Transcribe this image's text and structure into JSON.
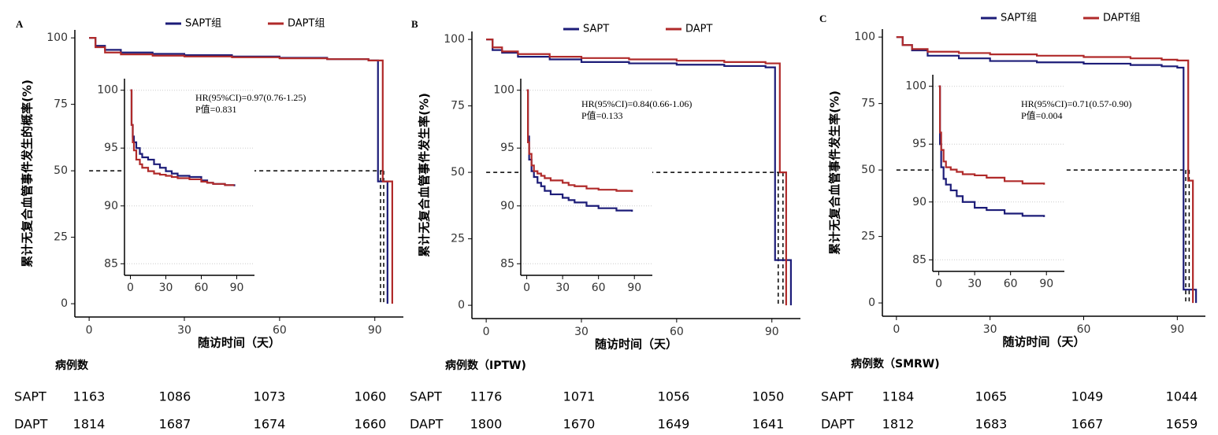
{
  "chart_data": [
    {
      "type": "line",
      "step": "post",
      "panel_label": "A",
      "xlabel": "随访时间（天）",
      "ylabel": "累计无复合血管事件发生的概率(%)",
      "xlim": [
        -4.5,
        99
      ],
      "ylim": [
        -5,
        103
      ],
      "xticks": [
        0,
        30,
        60,
        90
      ],
      "yticks": [
        0,
        25,
        50,
        75,
        100
      ],
      "series": [
        {
          "name": "SAPT组",
          "color": "#1c1c78",
          "x": [
            0,
            2,
            5,
            10,
            20,
            30,
            45,
            60,
            75,
            88,
            91,
            94
          ],
          "values": [
            100,
            97,
            95.5,
            94.5,
            94,
            93.5,
            93,
            92.5,
            92,
            91.5,
            46,
            0
          ]
        },
        {
          "name": "DAPT组",
          "color": "#b02a2a",
          "x": [
            0,
            2,
            5,
            10,
            20,
            30,
            45,
            60,
            75,
            88,
            92.5,
            95.5
          ],
          "values": [
            100,
            96.5,
            94.5,
            93.8,
            93.3,
            93,
            92.7,
            92.3,
            92,
            91.5,
            46,
            0
          ]
        }
      ],
      "median_lines": {
        "y": 50,
        "x": [
          91.8,
          92.8
        ]
      },
      "inset": {
        "xlim": [
          -5,
          105
        ],
        "ylim": [
          84,
          101
        ],
        "xticks": [
          0,
          30,
          60,
          90
        ],
        "yticks": [
          85,
          90,
          95,
          100
        ],
        "grid": true,
        "annotations": [
          "HR(95%CI)=0.97(0.76-1.25)",
          "P值=0.831"
        ],
        "series": [
          {
            "color": "#1c1c78",
            "x": [
              0,
              1,
              2,
              3,
              5,
              8,
              10,
              15,
              20,
              25,
              30,
              35,
              40,
              50,
              60,
              65,
              70,
              80,
              88
            ],
            "values": [
              100,
              97,
              96,
              95.5,
              95,
              94.5,
              94.2,
              94,
              93.6,
              93.3,
              93,
              92.8,
              92.6,
              92.5,
              92.2,
              92,
              91.9,
              91.8,
              91.7
            ]
          },
          {
            "color": "#b02a2a",
            "x": [
              0,
              1,
              2,
              3,
              5,
              8,
              10,
              15,
              20,
              25,
              30,
              35,
              40,
              50,
              60,
              65,
              70,
              80,
              88
            ],
            "values": [
              100,
              97,
              95.5,
              94.8,
              94,
              93.6,
              93.3,
              93,
              92.8,
              92.7,
              92.6,
              92.5,
              92.4,
              92.3,
              92.1,
              92,
              91.9,
              91.8,
              91.8
            ]
          }
        ]
      },
      "risk_table": {
        "title": "病例数",
        "rows": [
          {
            "name": "SAPT",
            "values": [
              1163,
              1086,
              1073,
              1060
            ]
          },
          {
            "name": "DAPT",
            "values": [
              1814,
              1687,
              1674,
              1660
            ]
          }
        ]
      }
    },
    {
      "type": "line",
      "step": "post",
      "panel_label": "B",
      "xlabel": "随访时间（天）",
      "ylabel": "累计无复合血管事件发生率(%)",
      "xlim": [
        -4.5,
        99
      ],
      "ylim": [
        -5,
        103
      ],
      "xticks": [
        0,
        30,
        60,
        90
      ],
      "yticks": [
        0,
        25,
        50,
        75,
        100
      ],
      "series": [
        {
          "name": "SAPT",
          "color": "#1c1c78",
          "x": [
            0,
            2,
            5,
            10,
            20,
            30,
            45,
            60,
            75,
            88,
            91,
            96
          ],
          "values": [
            100,
            96,
            95,
            93.5,
            92.5,
            91.5,
            91,
            90.5,
            90,
            89.5,
            17,
            0
          ]
        },
        {
          "name": "DAPT",
          "color": "#b02a2a",
          "x": [
            0,
            2,
            5,
            10,
            20,
            30,
            45,
            60,
            75,
            88,
            92.5,
            94.5
          ],
          "values": [
            100,
            97,
            95.5,
            94.5,
            93.5,
            93,
            92.5,
            92,
            91.5,
            91,
            50,
            0
          ]
        }
      ],
      "median_lines": {
        "y": 50,
        "x": [
          92,
          93.5
        ]
      },
      "inset": {
        "xlim": [
          -5,
          105
        ],
        "ylim": [
          84,
          101
        ],
        "xticks": [
          0,
          30,
          60,
          90
        ],
        "yticks": [
          85,
          90,
          95,
          100
        ],
        "grid": true,
        "annotations": [
          "HR(95%CI)=0.84(0.66-1.06)",
          "P值=0.133"
        ],
        "series": [
          {
            "color": "#1c1c78",
            "x": [
              0,
              1,
              2,
              4,
              6,
              9,
              12,
              15,
              20,
              30,
              35,
              40,
              50,
              60,
              75,
              88
            ],
            "values": [
              100,
              96,
              94,
              93,
              92.5,
              92,
              91.7,
              91.3,
              91,
              90.7,
              90.5,
              90.3,
              90,
              89.8,
              89.6,
              89.5
            ]
          },
          {
            "color": "#b02a2a",
            "x": [
              0,
              1,
              2,
              4,
              6,
              9,
              12,
              15,
              20,
              30,
              35,
              40,
              50,
              60,
              75,
              88
            ],
            "values": [
              100,
              95.5,
              94.5,
              93.5,
              93,
              92.8,
              92.6,
              92.4,
              92.2,
              92,
              91.8,
              91.7,
              91.5,
              91.4,
              91.3,
              91.2
            ]
          }
        ]
      },
      "risk_table": {
        "title": "病例数（IPTW)",
        "rows": [
          {
            "name": "SAPT",
            "values": [
              1176,
              1071,
              1056,
              1050
            ]
          },
          {
            "name": "DAPT",
            "values": [
              1800,
              1670,
              1649,
              1641
            ]
          }
        ]
      }
    },
    {
      "type": "line",
      "step": "post",
      "panel_label": "C",
      "xlabel": "随访时间（天）",
      "ylabel": "累计无复合血管事件发生率(%)",
      "xlim": [
        -4.5,
        99
      ],
      "ylim": [
        -5,
        103
      ],
      "xticks": [
        0,
        30,
        60,
        90
      ],
      "yticks": [
        0,
        25,
        50,
        75,
        100
      ],
      "series": [
        {
          "name": "SAPT组",
          "color": "#1c1c78",
          "x": [
            0,
            2,
            5,
            10,
            20,
            30,
            45,
            60,
            75,
            85,
            90,
            92,
            96
          ],
          "values": [
            100,
            97,
            95,
            93,
            92,
            91,
            90.5,
            90,
            89.5,
            89,
            88.5,
            5,
            0
          ]
        },
        {
          "name": "DAPT组",
          "color": "#b02a2a",
          "x": [
            0,
            2,
            5,
            10,
            20,
            30,
            45,
            60,
            75,
            85,
            90,
            93.5,
            95
          ],
          "values": [
            100,
            97,
            95.5,
            94.5,
            94,
            93.5,
            93,
            92.5,
            92,
            91.5,
            91.2,
            46,
            0
          ]
        }
      ],
      "median_lines": {
        "y": 50,
        "x": [
          92.7,
          93.8
        ]
      },
      "inset": {
        "xlim": [
          -5,
          105
        ],
        "ylim": [
          84,
          101
        ],
        "xticks": [
          0,
          30,
          60,
          90
        ],
        "yticks": [
          85,
          90,
          95,
          100
        ],
        "grid": true,
        "annotations": [
          "HR(95%CI)=0.71(0.57-0.90)",
          "P值=0.004"
        ],
        "series": [
          {
            "color": "#1c1c78",
            "x": [
              0,
              1,
              2,
              4,
              6,
              10,
              15,
              20,
              30,
              40,
              55,
              70,
              88
            ],
            "values": [
              100,
              95,
              93,
              92,
              91.5,
              91,
              90.5,
              90,
              89.5,
              89.3,
              89,
              88.8,
              88.7
            ]
          },
          {
            "color": "#b02a2a",
            "x": [
              0,
              1,
              2,
              4,
              6,
              10,
              15,
              20,
              30,
              40,
              55,
              70,
              88
            ],
            "values": [
              100,
              96,
              94.5,
              93.5,
              93,
              92.8,
              92.6,
              92.4,
              92.3,
              92.1,
              91.8,
              91.6,
              91.5
            ]
          }
        ]
      },
      "risk_table": {
        "title": "病例数（SMRW)",
        "rows": [
          {
            "name": "SAPT",
            "values": [
              1184,
              1065,
              1049,
              1044
            ]
          },
          {
            "name": "DAPT",
            "values": [
              1812,
              1683,
              1667,
              1659
            ]
          }
        ]
      }
    }
  ]
}
